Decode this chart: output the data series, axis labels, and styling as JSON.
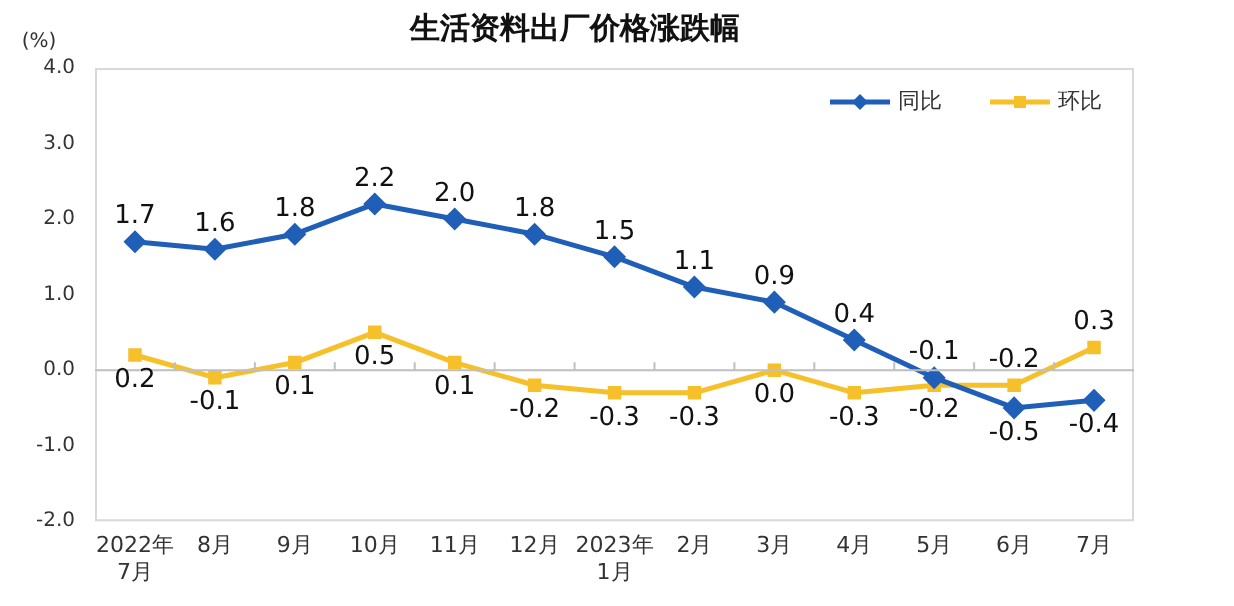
{
  "chart_data": {
    "type": "line",
    "title": "生活资料出厂价格涨跌幅",
    "ylabel": "(%)",
    "categories": [
      "2022年\n7月",
      "8月",
      "9月",
      "10月",
      "11月",
      "12月",
      "2023年\n1月",
      "2月",
      "3月",
      "4月",
      "5月",
      "6月",
      "7月"
    ],
    "series": [
      {
        "name": "同比",
        "color": "#1f5fb8",
        "marker": "diamond",
        "values": [
          1.7,
          1.6,
          1.8,
          2.2,
          2.0,
          1.8,
          1.5,
          1.1,
          0.9,
          0.4,
          -0.1,
          -0.5,
          -0.4
        ],
        "value_labels": [
          "1.7",
          "1.6",
          "1.8",
          "2.2",
          "2.0",
          "1.8",
          "1.5",
          "1.1",
          "0.9",
          "0.4",
          "-0.1",
          "-0.5",
          "-0.4"
        ]
      },
      {
        "name": "环比",
        "color": "#f5c02a",
        "marker": "square",
        "values": [
          0.2,
          -0.1,
          0.1,
          0.5,
          0.1,
          -0.2,
          -0.3,
          -0.3,
          0.0,
          -0.3,
          -0.2,
          -0.2,
          0.3
        ],
        "value_labels": [
          "0.2",
          "-0.1",
          "0.1",
          "0.5",
          "0.1",
          "-0.2",
          "-0.3",
          "-0.3",
          "0.0",
          "-0.3",
          "-0.2",
          "-0.2",
          "0.3"
        ]
      }
    ],
    "ylim": [
      -2,
      4
    ],
    "yticks": [
      {
        "value": -2,
        "label": "-2.0"
      },
      {
        "value": -1,
        "label": "-1.0"
      },
      {
        "value": 0,
        "label": "0.0"
      },
      {
        "value": 1,
        "label": "1.0"
      },
      {
        "value": 2,
        "label": "2.0"
      },
      {
        "value": 3,
        "label": "3.0"
      },
      {
        "value": 4,
        "label": "4.0"
      }
    ],
    "ref_lines": [
      {
        "axis": "y",
        "value": 0,
        "color": "#bfbfbf"
      }
    ],
    "grid": false,
    "legend": "top right",
    "line_style": "solid"
  }
}
